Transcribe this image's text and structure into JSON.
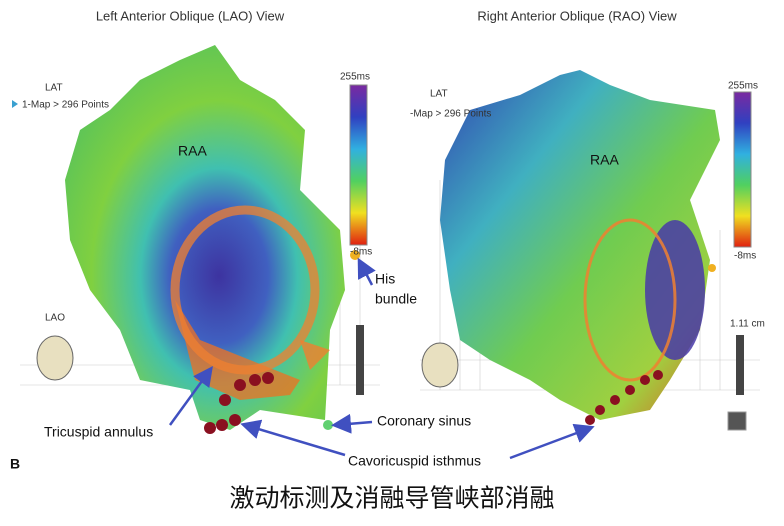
{
  "panels": [
    {
      "title": "Left Anterior Oblique (LAO) View",
      "lat": "LAT",
      "points": "1-Map > 296 Points",
      "scale_max": "255ms",
      "scale_min": "-8ms",
      "region": "RAA",
      "view": "LAO"
    },
    {
      "title": "Right Anterior Oblique (RAO) View",
      "lat": "LAT",
      "points": "-Map > 296 Points",
      "scale_max": "255ms",
      "scale_min": "-8ms",
      "region": "RAA",
      "scale_bar": "1.11 cm"
    }
  ],
  "annotations": {
    "his_bundle": [
      "His",
      "bundle"
    ],
    "tricuspid_annulus": "Tricuspid annulus",
    "coronary_sinus": "Coronary sinus",
    "cavotricuspid_isthmus": "Cavoricuspid isthmus"
  },
  "figure_label": "B",
  "caption": "激动标测及消融导管峡部消融"
}
